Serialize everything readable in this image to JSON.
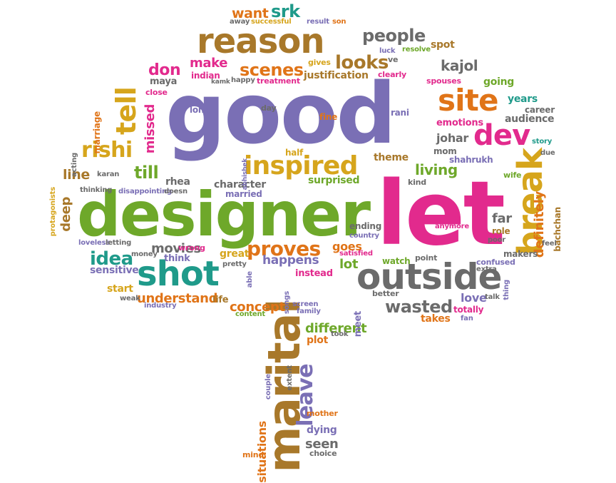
{
  "palette": {
    "purple": "#7a6fb5",
    "green": "#6ea82a",
    "pink": "#e22a8d",
    "brown": "#a8782a",
    "gray": "#6b6b6b",
    "teal": "#1f9a8a",
    "orange": "#e07418",
    "mustard": "#d6a51c",
    "red": "#c8283e"
  },
  "words": [
    {
      "text": "good",
      "color": "purple"
    },
    {
      "text": "designer",
      "color": "green"
    },
    {
      "text": "let",
      "color": "pink"
    },
    {
      "text": "reason",
      "color": "brown"
    },
    {
      "text": "outside",
      "color": "gray"
    },
    {
      "text": "marital",
      "color": "brown"
    },
    {
      "text": "shot",
      "color": "teal"
    },
    {
      "text": "site",
      "color": "orange"
    },
    {
      "text": "dev",
      "color": "pink"
    },
    {
      "text": "inspired",
      "color": "mustard"
    },
    {
      "text": "break",
      "color": "mustard"
    },
    {
      "text": "rishi",
      "color": "mustard"
    },
    {
      "text": "tell",
      "color": "mustard"
    },
    {
      "text": "wasted",
      "color": "gray"
    },
    {
      "text": "proves",
      "color": "orange"
    },
    {
      "text": "looks",
      "color": "brown"
    },
    {
      "text": "scenes",
      "color": "orange"
    },
    {
      "text": "people",
      "color": "gray"
    },
    {
      "text": "want",
      "color": "orange"
    },
    {
      "text": "srk",
      "color": "teal"
    },
    {
      "text": "idea",
      "color": "teal"
    },
    {
      "text": "movies",
      "color": "gray"
    },
    {
      "text": "living",
      "color": "green"
    },
    {
      "text": "line",
      "color": "brown"
    },
    {
      "text": "till",
      "color": "green"
    },
    {
      "text": "kajol",
      "color": "gray"
    },
    {
      "text": "leave",
      "color": "purple"
    },
    {
      "text": "happens",
      "color": "purple"
    },
    {
      "text": "definitely",
      "color": "orange"
    },
    {
      "text": "don",
      "color": "pink"
    },
    {
      "text": "make",
      "color": "pink"
    },
    {
      "text": "missed",
      "color": "pink"
    },
    {
      "text": "deep",
      "color": "brown"
    },
    {
      "text": "understand",
      "color": "orange"
    },
    {
      "text": "concept",
      "color": "orange"
    },
    {
      "text": "different",
      "color": "green"
    },
    {
      "text": "seen",
      "color": "gray"
    },
    {
      "text": "far",
      "color": "gray"
    },
    {
      "text": "spot",
      "color": "brown"
    },
    {
      "text": "audience",
      "color": "gray"
    },
    {
      "text": "johar",
      "color": "gray"
    },
    {
      "text": "mom",
      "color": "gray"
    },
    {
      "text": "theme",
      "color": "brown"
    },
    {
      "text": "character",
      "color": "gray"
    },
    {
      "text": "married",
      "color": "purple"
    },
    {
      "text": "rhea",
      "color": "gray"
    },
    {
      "text": "sensitive",
      "color": "purple"
    },
    {
      "text": "start",
      "color": "mustard"
    },
    {
      "text": "life",
      "color": "brown"
    },
    {
      "text": "plot",
      "color": "orange"
    },
    {
      "text": "dying",
      "color": "purple"
    },
    {
      "text": "situations",
      "color": "orange"
    },
    {
      "text": "love",
      "color": "purple"
    },
    {
      "text": "takes",
      "color": "orange"
    },
    {
      "text": "lot",
      "color": "green"
    },
    {
      "text": "goes",
      "color": "orange"
    },
    {
      "text": "great",
      "color": "mustard"
    },
    {
      "text": "think",
      "color": "purple"
    },
    {
      "text": "bachchan",
      "color": "brown"
    },
    {
      "text": "makers",
      "color": "gray"
    },
    {
      "text": "shahrukh",
      "color": "purple"
    },
    {
      "text": "emotions",
      "color": "pink"
    },
    {
      "text": "years",
      "color": "teal"
    },
    {
      "text": "career",
      "color": "gray"
    },
    {
      "text": "going",
      "color": "green"
    },
    {
      "text": "justification",
      "color": "brown"
    },
    {
      "text": "surprised",
      "color": "green"
    },
    {
      "text": "maya",
      "color": "gray"
    },
    {
      "text": "indian",
      "color": "pink"
    },
    {
      "text": "role",
      "color": "brown"
    },
    {
      "text": "wife",
      "color": "green"
    },
    {
      "text": "totally",
      "color": "pink"
    },
    {
      "text": "meet",
      "color": "purple"
    },
    {
      "text": "instead",
      "color": "pink"
    },
    {
      "text": "watch",
      "color": "green"
    },
    {
      "text": "ending",
      "color": "gray"
    },
    {
      "text": "point",
      "color": "gray"
    },
    {
      "text": "story",
      "color": "teal"
    },
    {
      "text": "kind",
      "color": "gray"
    },
    {
      "text": "half",
      "color": "mustard"
    },
    {
      "text": "long",
      "color": "purple"
    },
    {
      "text": "fine",
      "color": "orange"
    },
    {
      "text": "rani",
      "color": "purple"
    },
    {
      "text": "day",
      "color": "gray"
    },
    {
      "text": "close",
      "color": "pink"
    },
    {
      "text": "marriage",
      "color": "orange"
    },
    {
      "text": "acting",
      "color": "gray"
    },
    {
      "text": "protagonists",
      "color": "mustard"
    },
    {
      "text": "karan",
      "color": "gray"
    },
    {
      "text": "thinking",
      "color": "gray"
    },
    {
      "text": "disappointing",
      "color": "purple"
    },
    {
      "text": "doesn",
      "color": "gray"
    },
    {
      "text": "abhishek",
      "color": "purple"
    },
    {
      "text": "loveless",
      "color": "purple"
    },
    {
      "text": "letting",
      "color": "gray"
    },
    {
      "text": "money",
      "color": "gray"
    },
    {
      "text": "wrong",
      "color": "pink"
    },
    {
      "text": "pretty",
      "color": "gray"
    },
    {
      "text": "able",
      "color": "purple"
    },
    {
      "text": "weak",
      "color": "gray"
    },
    {
      "text": "industry",
      "color": "purple"
    },
    {
      "text": "content",
      "color": "green"
    },
    {
      "text": "songs",
      "color": "purple"
    },
    {
      "text": "screen",
      "color": "purple"
    },
    {
      "text": "family",
      "color": "purple"
    },
    {
      "text": "took",
      "color": "gray"
    },
    {
      "text": "couple",
      "color": "purple"
    },
    {
      "text": "extent",
      "color": "gray"
    },
    {
      "text": "mother",
      "color": "orange"
    },
    {
      "text": "choice",
      "color": "gray"
    },
    {
      "text": "mind",
      "color": "orange"
    },
    {
      "text": "better",
      "color": "gray"
    },
    {
      "text": "confused",
      "color": "purple"
    },
    {
      "text": "extra",
      "color": "gray"
    },
    {
      "text": "thing",
      "color": "purple"
    },
    {
      "text": "talk",
      "color": "gray"
    },
    {
      "text": "fan",
      "color": "purple"
    },
    {
      "text": "satisfied",
      "color": "pink"
    },
    {
      "text": "country",
      "color": "purple"
    },
    {
      "text": "anymore",
      "color": "pink"
    },
    {
      "text": "feel",
      "color": "gray"
    },
    {
      "text": "due",
      "color": "gray"
    },
    {
      "text": "poor",
      "color": "gray"
    },
    {
      "text": "spouses",
      "color": "pink"
    },
    {
      "text": "clearly",
      "color": "pink"
    },
    {
      "text": "gives",
      "color": "mustard"
    },
    {
      "text": "treatment",
      "color": "pink"
    },
    {
      "text": "happy",
      "color": "gray"
    },
    {
      "text": "kamk",
      "color": "gray"
    },
    {
      "text": "away",
      "color": "gray"
    },
    {
      "text": "successful",
      "color": "mustard"
    },
    {
      "text": "result",
      "color": "purple"
    },
    {
      "text": "son",
      "color": "orange"
    },
    {
      "text": "luck",
      "color": "purple"
    },
    {
      "text": "resolve",
      "color": "green"
    },
    {
      "text": "ve",
      "color": "gray"
    }
  ]
}
